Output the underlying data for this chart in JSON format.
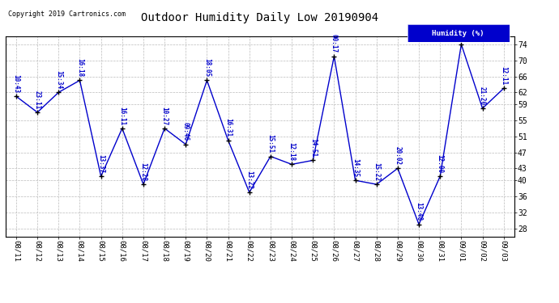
{
  "title": "Outdoor Humidity Daily Low 20190904",
  "copyright": "Copyright 2019 Cartronics.com",
  "legend_label": "Humidity (%)",
  "x_labels": [
    "08/11",
    "08/12",
    "08/13",
    "08/14",
    "08/15",
    "08/16",
    "08/17",
    "08/18",
    "08/19",
    "08/20",
    "08/21",
    "08/22",
    "08/23",
    "08/24",
    "08/25",
    "08/26",
    "08/27",
    "08/28",
    "08/29",
    "08/30",
    "08/31",
    "09/01",
    "09/02",
    "09/03"
  ],
  "y_values": [
    61,
    57,
    62,
    65,
    41,
    53,
    39,
    53,
    49,
    65,
    50,
    37,
    46,
    44,
    45,
    71,
    40,
    39,
    43,
    29,
    41,
    74,
    58,
    63
  ],
  "point_labels": [
    "10:43",
    "23:11",
    "15:34",
    "16:18",
    "13:37",
    "16:11",
    "12:28",
    "10:27",
    "09:46",
    "18:05",
    "16:31",
    "13:22",
    "15:51",
    "12:18",
    "14:51",
    "00:17",
    "14:35",
    "15:22",
    "20:02",
    "13:48",
    "12:00",
    "",
    "21:20",
    "12:11"
  ],
  "ylim_min": 26,
  "ylim_max": 76,
  "yticks": [
    28,
    32,
    36,
    40,
    43,
    47,
    51,
    55,
    59,
    62,
    66,
    70,
    74
  ],
  "line_color": "#0000CC",
  "marker_color": "#000000",
  "bg_color": "#ffffff",
  "grid_color": "#bbbbbb",
  "label_color": "#0000CC",
  "title_color": "#000000",
  "legend_bg": "#0000CC",
  "legend_text_color": "#ffffff"
}
